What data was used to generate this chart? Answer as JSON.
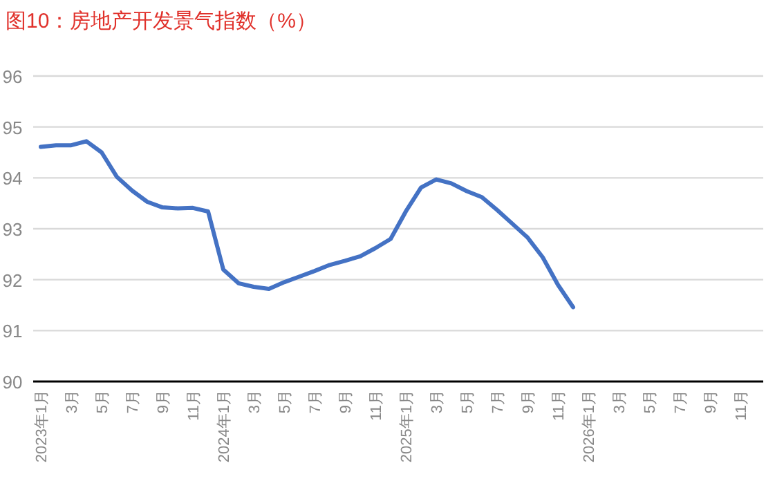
{
  "chart_data": {
    "type": "line",
    "title": "图10：房地产开发景气指数（%）",
    "categories": [
      "2023年1月",
      null,
      "3月",
      null,
      "5月",
      null,
      "7月",
      null,
      "9月",
      null,
      "11月",
      null,
      "2024年1月",
      null,
      "3月",
      null,
      "5月",
      null,
      "7月",
      null,
      "9月",
      null,
      "11月",
      null,
      "2025年1月",
      null,
      "3月",
      null,
      "5月",
      null,
      "7月",
      null,
      "9月",
      null,
      "11月",
      null,
      "2026年1月",
      null,
      "3月",
      null,
      "5月",
      null,
      "7月",
      null,
      "9月",
      null,
      "11月",
      null
    ],
    "series": [
      {
        "color": "#4472c4",
        "values": [
          94.61,
          94.64,
          94.64,
          94.72,
          94.5,
          94.02,
          93.75,
          93.53,
          93.42,
          93.4,
          93.41,
          93.34,
          92.2,
          91.93,
          91.86,
          91.82,
          91.95,
          92.06,
          92.17,
          92.29,
          92.37,
          92.46,
          92.62,
          92.8,
          93.34,
          93.81,
          93.97,
          93.89,
          93.74,
          93.62,
          93.37,
          93.1,
          92.83,
          92.44,
          91.9,
          91.46,
          null,
          null,
          null,
          null,
          null,
          null,
          null,
          null,
          null,
          null,
          null,
          null
        ]
      }
    ],
    "ylim": [
      90,
      96
    ],
    "yticks": [
      90,
      91,
      92,
      93,
      94,
      95,
      96
    ],
    "grid": "y",
    "marker": "none",
    "line_style": "solid"
  }
}
